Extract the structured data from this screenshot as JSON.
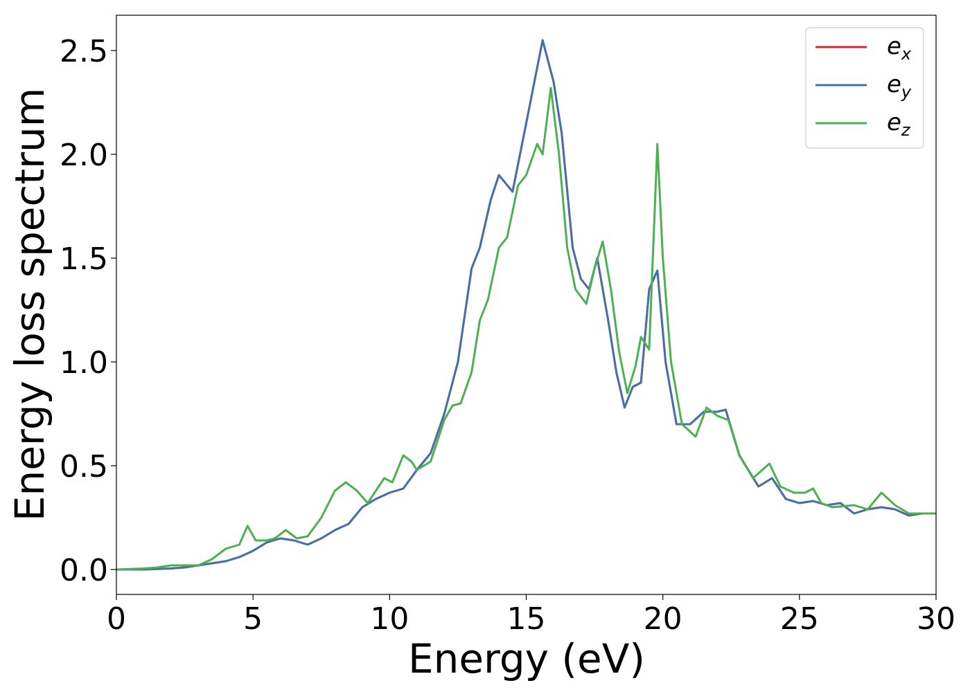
{
  "chart_data": {
    "type": "line",
    "title": "",
    "xlabel": "Energy (eV)",
    "ylabel": "Energy loss spectrum",
    "xlim": [
      0,
      30
    ],
    "ylim": [
      -0.12,
      2.67
    ],
    "xticks": [
      0,
      5,
      10,
      15,
      20,
      25,
      30
    ],
    "xtick_labels": [
      "0",
      "5",
      "10",
      "15",
      "20",
      "25",
      "30"
    ],
    "yticks": [
      0.0,
      0.5,
      1.0,
      1.5,
      2.0,
      2.5
    ],
    "ytick_labels": [
      "0.0",
      "0.5",
      "1.0",
      "1.5",
      "2.0",
      "2.5"
    ],
    "grid": false,
    "legend": "top-right",
    "series": [
      {
        "name": "e_x",
        "label_base": "e",
        "label_sub": "x",
        "color": "#d62728",
        "x": [
          0,
          1,
          2,
          2.5,
          3,
          3.5,
          4,
          4.5,
          5,
          5.5,
          6,
          6.5,
          7,
          7.5,
          8,
          8.5,
          9,
          9.5,
          10,
          10.5,
          11,
          11.5,
          12,
          12.5,
          13,
          13.3,
          13.7,
          14,
          14.5,
          15,
          15.3,
          15.6,
          15.8,
          16,
          16.3,
          16.7,
          17,
          17.3,
          17.6,
          18,
          18.3,
          18.6,
          18.9,
          19.2,
          19.5,
          19.8,
          20.1,
          20.5,
          21,
          21.5,
          22,
          22.3,
          22.8,
          23.5,
          24,
          24.5,
          25,
          25.5,
          26,
          26.5,
          27,
          27.5,
          28,
          28.5,
          29,
          29.5,
          30
        ],
        "y": [
          0,
          0,
          0.005,
          0.01,
          0.02,
          0.03,
          0.04,
          0.06,
          0.09,
          0.13,
          0.15,
          0.14,
          0.12,
          0.15,
          0.19,
          0.22,
          0.3,
          0.34,
          0.37,
          0.39,
          0.48,
          0.56,
          0.75,
          1.0,
          1.45,
          1.55,
          1.78,
          1.9,
          1.82,
          2.15,
          2.35,
          2.55,
          2.45,
          2.35,
          2.1,
          1.55,
          1.4,
          1.35,
          1.5,
          1.2,
          0.95,
          0.78,
          0.88,
          0.9,
          1.35,
          1.44,
          1.0,
          0.7,
          0.7,
          0.76,
          0.76,
          0.77,
          0.55,
          0.4,
          0.44,
          0.34,
          0.32,
          0.33,
          0.31,
          0.32,
          0.27,
          0.29,
          0.3,
          0.29,
          0.26,
          0.27,
          0.27
        ]
      },
      {
        "name": "e_y",
        "label_base": "e",
        "label_sub": "y",
        "color": "#4472a8",
        "x": [
          0,
          1,
          2,
          2.5,
          3,
          3.5,
          4,
          4.5,
          5,
          5.5,
          6,
          6.5,
          7,
          7.5,
          8,
          8.5,
          9,
          9.5,
          10,
          10.5,
          11,
          11.5,
          12,
          12.5,
          13,
          13.3,
          13.7,
          14,
          14.5,
          15,
          15.3,
          15.6,
          15.8,
          16,
          16.3,
          16.7,
          17,
          17.3,
          17.6,
          18,
          18.3,
          18.6,
          18.9,
          19.2,
          19.5,
          19.8,
          20.1,
          20.5,
          21,
          21.5,
          22,
          22.3,
          22.8,
          23.5,
          24,
          24.5,
          25,
          25.5,
          26,
          26.5,
          27,
          27.5,
          28,
          28.5,
          29,
          29.5,
          30
        ],
        "y": [
          0,
          0,
          0.005,
          0.01,
          0.02,
          0.03,
          0.04,
          0.06,
          0.09,
          0.13,
          0.15,
          0.14,
          0.12,
          0.15,
          0.19,
          0.22,
          0.3,
          0.34,
          0.37,
          0.39,
          0.48,
          0.56,
          0.75,
          1.0,
          1.45,
          1.55,
          1.78,
          1.9,
          1.82,
          2.15,
          2.35,
          2.55,
          2.45,
          2.35,
          2.1,
          1.55,
          1.4,
          1.35,
          1.5,
          1.2,
          0.95,
          0.78,
          0.88,
          0.9,
          1.35,
          1.44,
          1.0,
          0.7,
          0.7,
          0.76,
          0.76,
          0.77,
          0.55,
          0.4,
          0.44,
          0.34,
          0.32,
          0.33,
          0.31,
          0.32,
          0.27,
          0.29,
          0.3,
          0.29,
          0.26,
          0.27,
          0.27
        ]
      },
      {
        "name": "e_z",
        "label_base": "e",
        "label_sub": "z",
        "color": "#4caf50",
        "x": [
          0,
          1,
          1.5,
          2,
          2.5,
          3,
          3.5,
          4,
          4.5,
          4.8,
          5.1,
          5.5,
          5.8,
          6.2,
          6.6,
          7,
          7.5,
          8,
          8.4,
          8.8,
          9.2,
          9.6,
          9.8,
          10.1,
          10.5,
          10.8,
          11,
          11.5,
          12,
          12.3,
          12.6,
          13,
          13.3,
          13.6,
          14,
          14.3,
          14.7,
          15,
          15.4,
          15.6,
          15.9,
          16.2,
          16.5,
          16.8,
          17.2,
          17.5,
          17.8,
          18.1,
          18.4,
          18.7,
          19.0,
          19.2,
          19.5,
          19.8,
          20.0,
          20.3,
          20.7,
          21.2,
          21.6,
          22,
          22.4,
          22.8,
          23.3,
          23.9,
          24.3,
          24.8,
          25.2,
          25.5,
          25.8,
          26.2,
          27,
          27.5,
          28,
          28.5,
          29,
          29.5,
          30
        ],
        "y": [
          0,
          0.005,
          0.01,
          0.02,
          0.02,
          0.02,
          0.05,
          0.1,
          0.12,
          0.21,
          0.14,
          0.14,
          0.15,
          0.19,
          0.15,
          0.16,
          0.25,
          0.38,
          0.42,
          0.38,
          0.32,
          0.4,
          0.44,
          0.42,
          0.55,
          0.52,
          0.48,
          0.52,
          0.72,
          0.79,
          0.8,
          0.95,
          1.2,
          1.3,
          1.55,
          1.6,
          1.85,
          1.9,
          2.05,
          2.0,
          2.32,
          2.0,
          1.55,
          1.35,
          1.28,
          1.45,
          1.58,
          1.35,
          1.05,
          0.85,
          0.98,
          1.12,
          1.06,
          2.05,
          1.5,
          1.0,
          0.7,
          0.64,
          0.78,
          0.74,
          0.72,
          0.55,
          0.44,
          0.51,
          0.4,
          0.37,
          0.37,
          0.39,
          0.32,
          0.3,
          0.31,
          0.29,
          0.37,
          0.31,
          0.27,
          0.27,
          0.27
        ]
      }
    ]
  }
}
